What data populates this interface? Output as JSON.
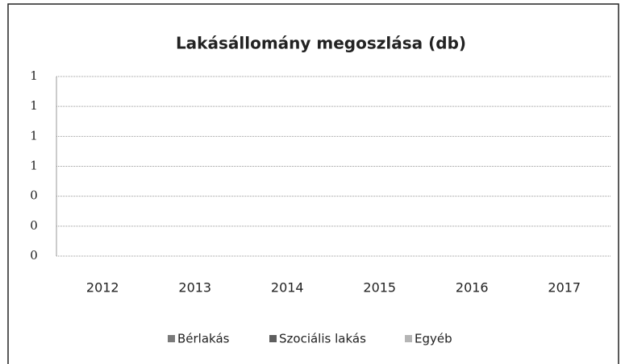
{
  "chart_data": {
    "type": "bar",
    "title": "Lakásállomány megoszlása (db)",
    "categories": [
      "2012",
      "2013",
      "2014",
      "2015",
      "2016",
      "2017"
    ],
    "series": [
      {
        "name": "Bérlakás",
        "color": "#7a7a7a",
        "values": [
          0,
          0,
          0,
          0,
          0,
          0
        ]
      },
      {
        "name": "Szociális lakás",
        "color": "#5e5e5e",
        "values": [
          0,
          0,
          0,
          0,
          0,
          0
        ]
      },
      {
        "name": "Egyéb",
        "color": "#b5b5b5",
        "values": [
          0,
          0,
          0,
          0,
          0,
          0
        ]
      }
    ],
    "ylim": [
      0,
      1.2
    ],
    "yticks": [
      0,
      {
        "value": 0.2,
        "label": "0"
      },
      {
        "value": 0.4,
        "label": "0"
      },
      {
        "value": 0.6,
        "label": "1"
      },
      {
        "value": 0.8,
        "label": "1"
      },
      1,
      {
        "value": 1.2,
        "label": "1"
      }
    ],
    "grid": true,
    "legend": "bottom"
  }
}
